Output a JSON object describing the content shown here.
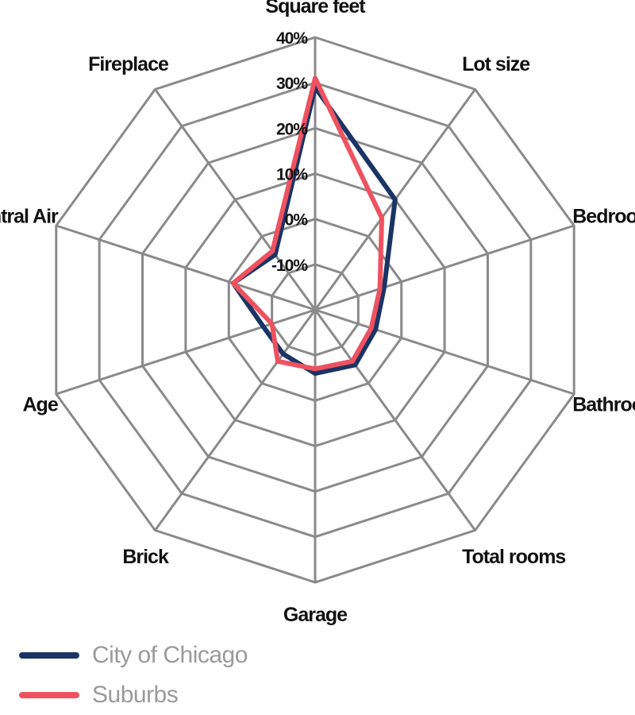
{
  "chart_data": {
    "type": "radar",
    "axes": [
      "Square feet",
      "Lot size",
      "Bedroom",
      "Bathroom",
      "Total rooms",
      "Garage",
      "Brick",
      "Age",
      "Central Air",
      "Fireplace"
    ],
    "r_ticks": [
      "40%",
      "30%",
      "20%",
      "10%",
      "0%",
      "-10%"
    ],
    "r_range": [
      -20,
      40
    ],
    "series": [
      {
        "name": "City of Chicago",
        "color": "#1b3466",
        "values": [
          29,
          10,
          -4,
          -6,
          -5,
          -6,
          -8,
          -8,
          -1,
          -5
        ]
      },
      {
        "name": "Suburbs",
        "color": "#ee5260",
        "values": [
          31,
          5,
          -5,
          -7,
          -6,
          -7,
          -6,
          -10,
          -1,
          -4
        ]
      }
    ],
    "grid": true,
    "legend_position": "bottom-left"
  },
  "legend": {
    "items": [
      {
        "label": "City of Chicago",
        "color": "#1b3466"
      },
      {
        "label": "Suburbs",
        "color": "#ee5260"
      }
    ]
  }
}
